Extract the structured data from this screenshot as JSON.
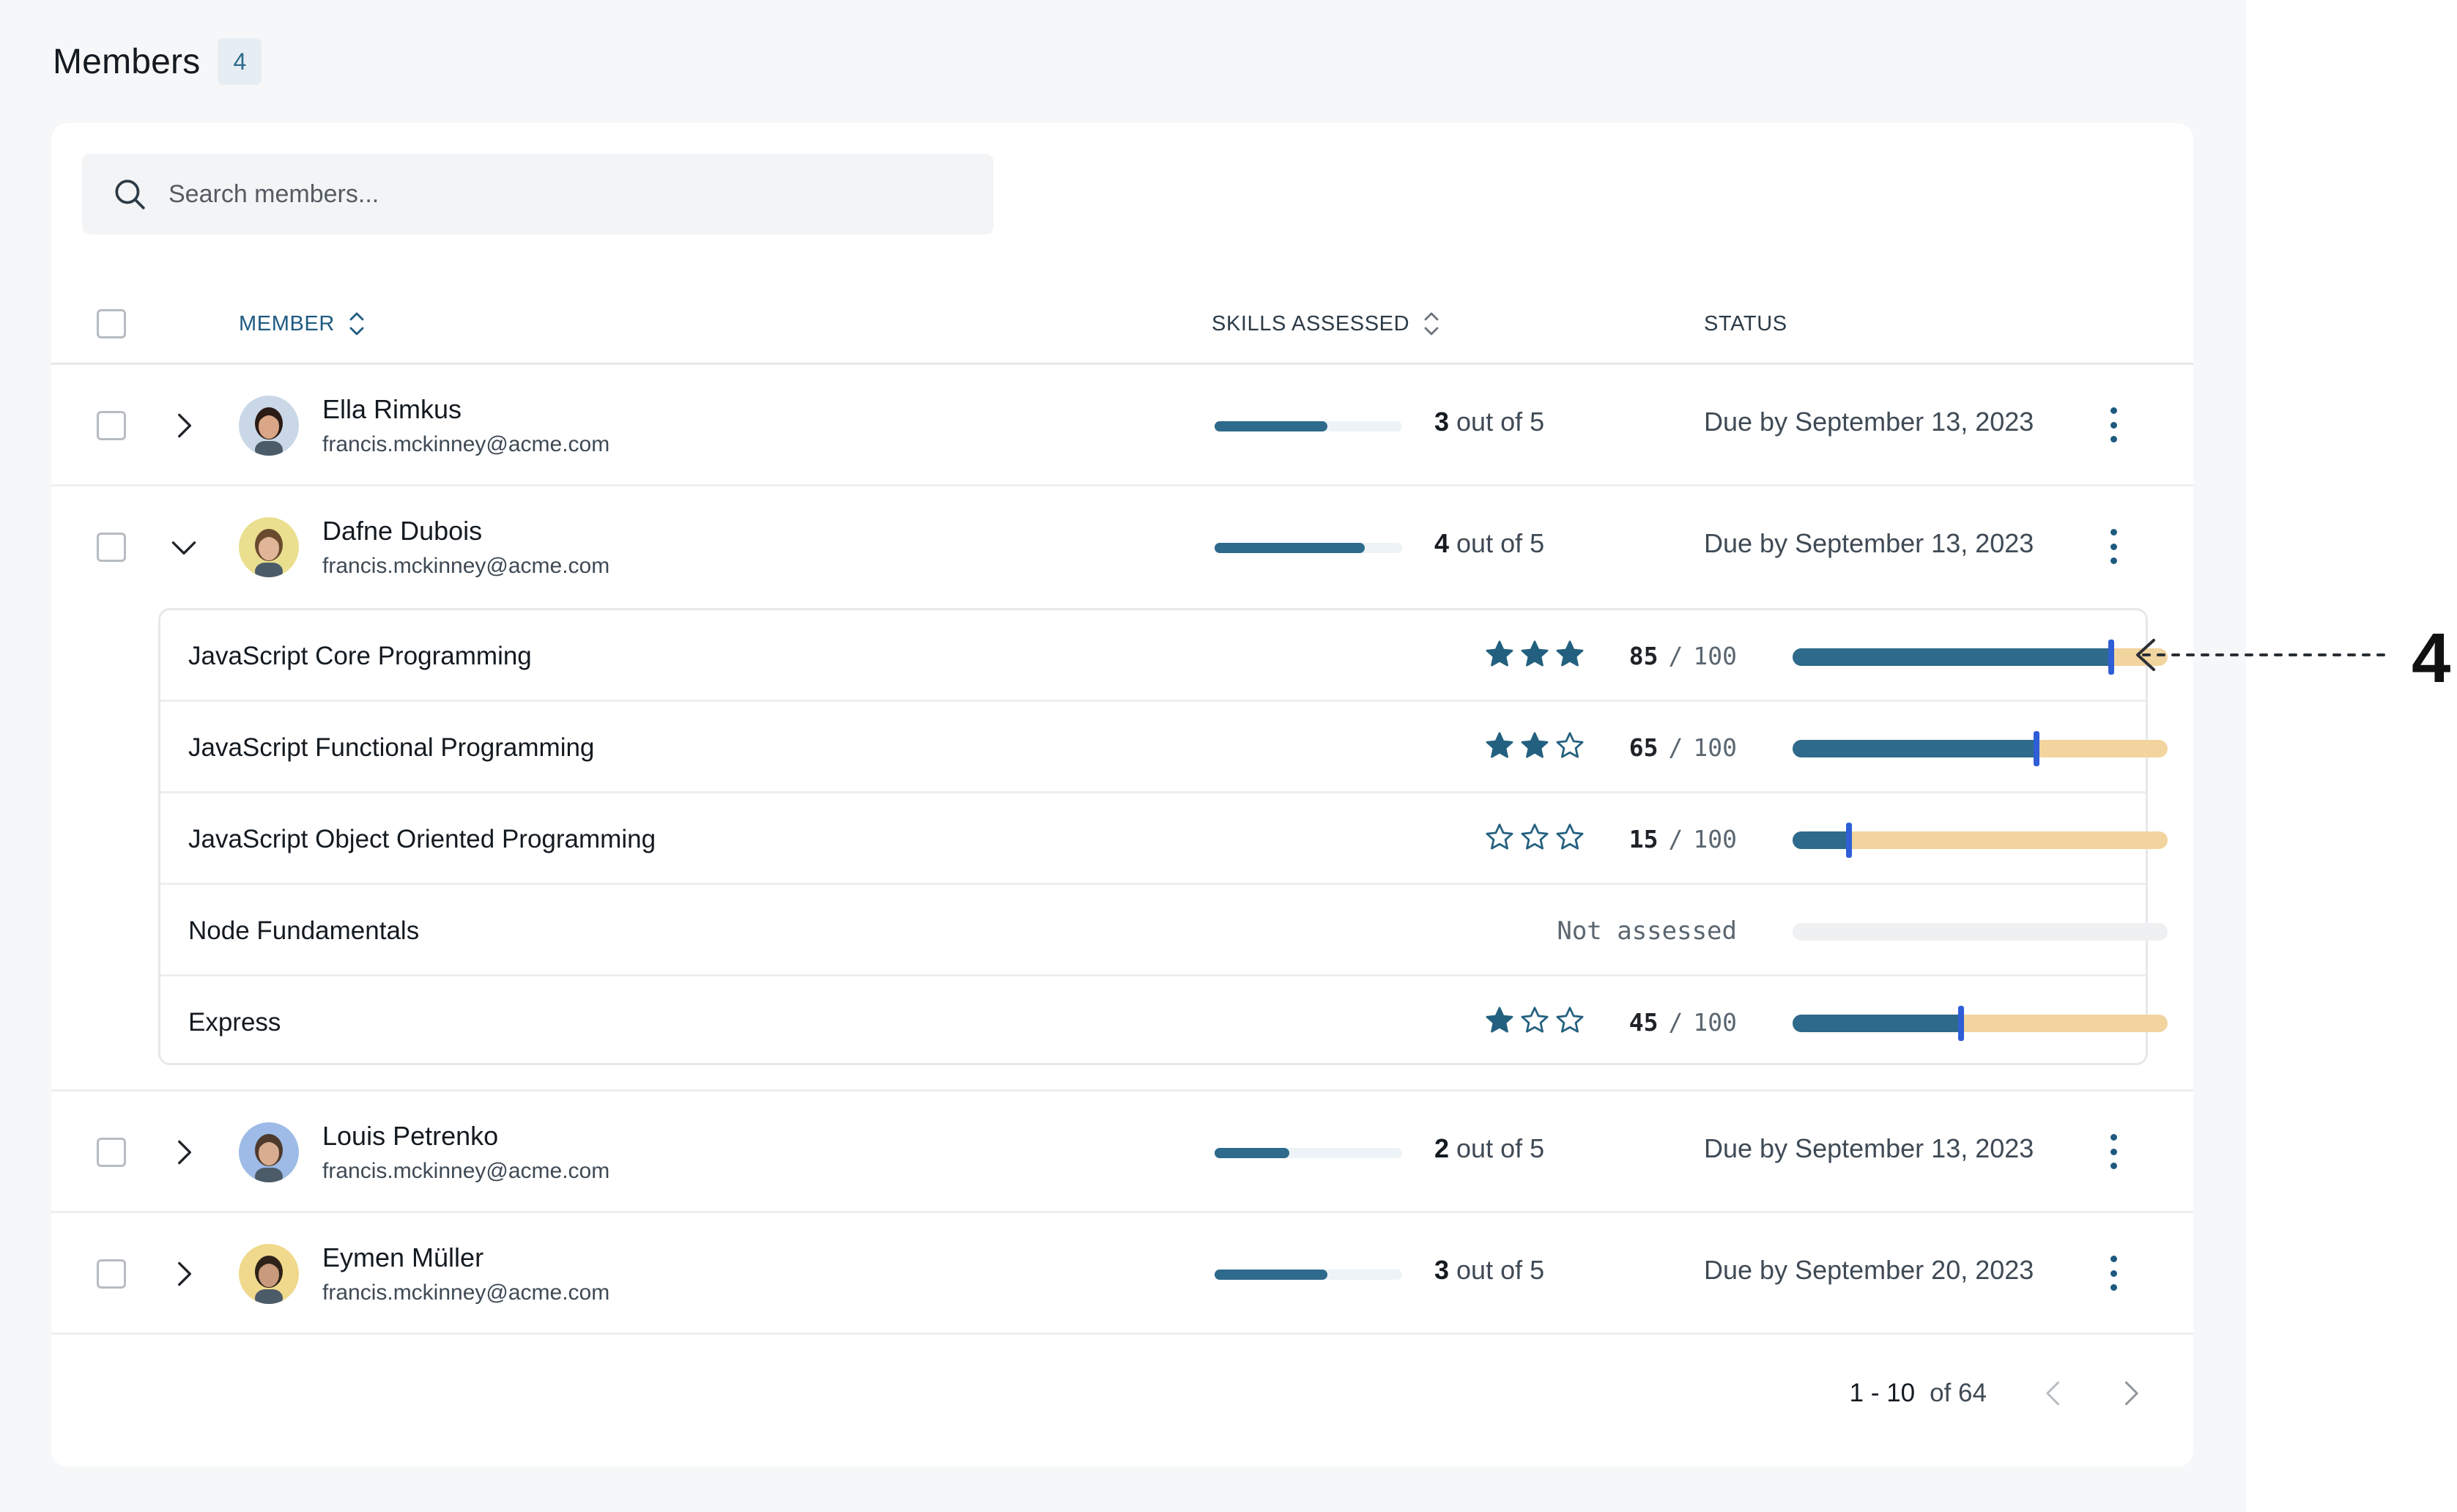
{
  "header": {
    "title": "Members",
    "count": "4"
  },
  "search": {
    "placeholder": "Search members..."
  },
  "columns": {
    "member": "MEMBER",
    "skills": "SKILLS ASSESSED",
    "status": "STATUS"
  },
  "members": [
    {
      "name": "Ella Rimkus",
      "email": "francis.mckinney@acme.com",
      "assessed": "3",
      "total_text": "out of 5",
      "progress": 0.6,
      "status": "Due by September 13, 2023",
      "expanded": false,
      "avatar_bg": "#c9d7e6",
      "skin": "#d9a788",
      "hair": "#2a1b14"
    },
    {
      "name": "Dafne Dubois",
      "email": "francis.mckinney@acme.com",
      "assessed": "4",
      "total_text": "out of 5",
      "progress": 0.8,
      "status": "Due by September 13, 2023",
      "expanded": true,
      "avatar_bg": "#eadf8e",
      "skin": "#e1b597",
      "hair": "#6a4a2e"
    },
    {
      "name": "Louis Petrenko",
      "email": "francis.mckinney@acme.com",
      "assessed": "2",
      "total_text": "out of 5",
      "progress": 0.4,
      "status": "Due by September 13, 2023",
      "expanded": false,
      "avatar_bg": "#9dbbe6",
      "skin": "#d9ad8f",
      "hair": "#4d3a2c"
    },
    {
      "name": "Eymen Müller",
      "email": "francis.mckinney@acme.com",
      "assessed": "3",
      "total_text": "out of 5",
      "progress": 0.6,
      "status": "Due by September 20, 2023",
      "expanded": false,
      "avatar_bg": "#f0d98c",
      "skin": "#c99a7c",
      "hair": "#2e2219"
    }
  ],
  "skills": [
    {
      "name": "JavaScript Core Programming",
      "stars": 3,
      "score": "85",
      "max": "100",
      "value": 85
    },
    {
      "name": "JavaScript Functional Programming",
      "stars": 2,
      "score": "65",
      "max": "100",
      "value": 65
    },
    {
      "name": "JavaScript Object Oriented Programming",
      "stars": 0,
      "score": "15",
      "max": "100",
      "value": 15
    },
    {
      "name": "Node Fundamentals",
      "stars": null,
      "not_assessed": "Not assessed",
      "value": null
    },
    {
      "name": "Express",
      "stars": 1,
      "score": "45",
      "max": "100",
      "value": 45
    }
  ],
  "pagination": {
    "range": "1 - 10",
    "of": "of 64"
  },
  "annotation": {
    "label": "4"
  },
  "colors": {
    "accent": "#2d6a8b",
    "marker": "#2f5fd6",
    "track": "#f2d49f",
    "link": "#1e5a80"
  }
}
